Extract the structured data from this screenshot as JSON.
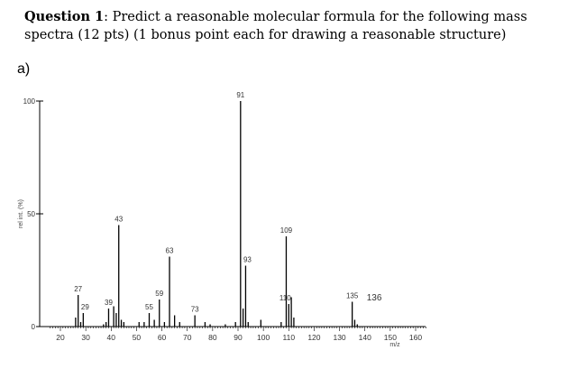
{
  "question": {
    "number": "Question 1",
    "text": ": Predict a reasonable molecular formula for the following mass spectra (12 pts) (1 bonus point each for drawing a reasonable structure)"
  },
  "part_label": "a)",
  "chart_data": {
    "type": "bar",
    "title": "",
    "xlabel": "m/z",
    "ylabel": "rel int. (%)",
    "xlim": [
      15,
      165
    ],
    "ylim": [
      0,
      100
    ],
    "x_ticks": [
      20,
      30,
      40,
      50,
      60,
      70,
      80,
      90,
      100,
      110,
      120,
      130,
      140,
      150,
      160
    ],
    "y_ticks": [
      0,
      50,
      100
    ],
    "peaks": [
      {
        "x": 26,
        "y": 4
      },
      {
        "x": 27,
        "y": 14
      },
      {
        "x": 28,
        "y": 2
      },
      {
        "x": 29,
        "y": 6
      },
      {
        "x": 37,
        "y": 1
      },
      {
        "x": 38,
        "y": 2
      },
      {
        "x": 39,
        "y": 8
      },
      {
        "x": 41,
        "y": 9
      },
      {
        "x": 42,
        "y": 6
      },
      {
        "x": 43,
        "y": 45
      },
      {
        "x": 44,
        "y": 3
      },
      {
        "x": 45,
        "y": 2
      },
      {
        "x": 51,
        "y": 2
      },
      {
        "x": 53,
        "y": 2
      },
      {
        "x": 55,
        "y": 6
      },
      {
        "x": 57,
        "y": 3
      },
      {
        "x": 59,
        "y": 12
      },
      {
        "x": 61,
        "y": 2
      },
      {
        "x": 63,
        "y": 31
      },
      {
        "x": 65,
        "y": 5
      },
      {
        "x": 67,
        "y": 2
      },
      {
        "x": 73,
        "y": 5
      },
      {
        "x": 77,
        "y": 2
      },
      {
        "x": 79,
        "y": 1
      },
      {
        "x": 85,
        "y": 1
      },
      {
        "x": 89,
        "y": 2
      },
      {
        "x": 91,
        "y": 100
      },
      {
        "x": 92,
        "y": 8
      },
      {
        "x": 93,
        "y": 27
      },
      {
        "x": 94,
        "y": 2
      },
      {
        "x": 99,
        "y": 3
      },
      {
        "x": 107,
        "y": 2
      },
      {
        "x": 109,
        "y": 40
      },
      {
        "x": 110,
        "y": 10
      },
      {
        "x": 111,
        "y": 13
      },
      {
        "x": 112,
        "y": 4
      },
      {
        "x": 135,
        "y": 11
      },
      {
        "x": 136,
        "y": 3
      },
      {
        "x": 137,
        "y": 1
      }
    ],
    "annotations": [
      {
        "x": 27,
        "y": 14,
        "text": "27"
      },
      {
        "x": 29,
        "y": 6,
        "text": "29"
      },
      {
        "x": 39,
        "y": 8,
        "text": "39"
      },
      {
        "x": 43,
        "y": 45,
        "text": "43"
      },
      {
        "x": 55,
        "y": 6,
        "text": "55"
      },
      {
        "x": 59,
        "y": 12,
        "text": "59"
      },
      {
        "x": 63,
        "y": 31,
        "text": "63"
      },
      {
        "x": 73,
        "y": 5,
        "text": "73"
      },
      {
        "x": 91,
        "y": 100,
        "text": "91"
      },
      {
        "x": 93,
        "y": 27,
        "text": "93"
      },
      {
        "x": 109,
        "y": 40,
        "text": "109"
      },
      {
        "x": 110,
        "y": 10,
        "text": "110"
      },
      {
        "x": 135,
        "y": 11,
        "text": "135"
      },
      {
        "x": 140,
        "y": 6,
        "text": "136"
      }
    ],
    "grid": false
  }
}
